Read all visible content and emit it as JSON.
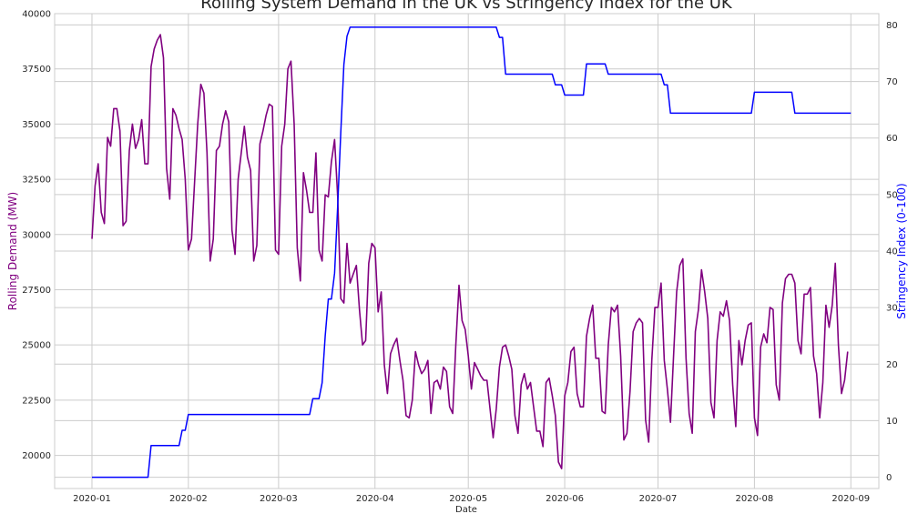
{
  "chart_data": {
    "type": "line",
    "title": "Rolling System Demand in the UK vs Stringency Index for the UK",
    "xlabel": "Date",
    "ylabel_left": "Rolling Demand (MW)",
    "ylabel_right": "Stringency Index (0-100)",
    "x_range": [
      "2019-12-20",
      "2020-09-10"
    ],
    "x_ticks": [
      "2020-01",
      "2020-02",
      "2020-03",
      "2020-04",
      "2020-05",
      "2020-06",
      "2020-07",
      "2020-08",
      "2020-09"
    ],
    "x_tick_dates": [
      "2020-01-01",
      "2020-02-01",
      "2020-03-01",
      "2020-04-01",
      "2020-05-01",
      "2020-06-01",
      "2020-07-01",
      "2020-08-01",
      "2020-09-01"
    ],
    "ylim_left": [
      18500,
      40000
    ],
    "ylim_right": [
      -2,
      82
    ],
    "yticks_left": [
      20000,
      22500,
      25000,
      27500,
      30000,
      32500,
      35000,
      37500,
      40000
    ],
    "yticks_right": [
      0,
      10,
      20,
      30,
      40,
      50,
      60,
      70,
      80
    ],
    "grid": true,
    "colors": {
      "demand": "#800080",
      "stringency": "#0000ff"
    },
    "series": [
      {
        "axis": "left",
        "color": "#800080",
        "start_date": "2020-01-01",
        "interval_days": 1,
        "values": [
          29800,
          32200,
          33200,
          31000,
          30500,
          34400,
          34000,
          35700,
          35700,
          34700,
          30400,
          30600,
          33800,
          35000,
          33900,
          34300,
          35200,
          33200,
          33200,
          37600,
          38400,
          38800,
          39050,
          38000,
          33000,
          31600,
          35700,
          35400,
          34800,
          34300,
          32500,
          29300,
          29800,
          32400,
          35000,
          36800,
          36400,
          33700,
          28800,
          29800,
          33800,
          34000,
          35000,
          35600,
          35100,
          30200,
          29100,
          32500,
          33700,
          34900,
          33500,
          32900,
          28800,
          29500,
          34100,
          34700,
          35400,
          35900,
          35800,
          29300,
          29100,
          34000,
          35000,
          37500,
          37850,
          35000,
          29400,
          27900,
          32800,
          32000,
          31000,
          31000,
          33700,
          29300,
          28800,
          31800,
          31700,
          33300,
          34300,
          31700,
          27100,
          26900,
          29600,
          27800,
          28200,
          28600,
          26600,
          25000,
          25200,
          28700,
          29600,
          29400,
          26500,
          27400,
          24100,
          22800,
          24600,
          25000,
          25300,
          24300,
          23400,
          21800,
          21700,
          22500,
          24700,
          24100,
          23700,
          23900,
          24300,
          21900,
          23300,
          23400,
          23000,
          24000,
          23800,
          22200,
          21900,
          25000,
          27700,
          26100,
          25700,
          24500,
          23000,
          24200,
          23900,
          23600,
          23400,
          23400,
          22100,
          20800,
          22100,
          24000,
          24900,
          25000,
          24500,
          23900,
          21800,
          21000,
          23200,
          23700,
          23000,
          23300,
          22200,
          21100,
          21100,
          20400,
          23300,
          23500,
          22700,
          21800,
          19700,
          19400,
          22700,
          23300,
          24700,
          24900,
          22800,
          22200,
          22200,
          25400,
          26200,
          26800,
          24400,
          24400,
          22000,
          21900,
          25000,
          26700,
          26500,
          26800,
          24500,
          20700,
          21000,
          22900,
          25600,
          26000,
          26200,
          26000,
          21600,
          20600,
          24300,
          26700,
          26700,
          27800,
          24300,
          23000,
          21500,
          24500,
          27400,
          28600,
          28900,
          24400,
          21900,
          21000,
          25600,
          26600,
          28400,
          27400,
          26200,
          22400,
          21700,
          25200,
          26500,
          26300,
          27000,
          26100,
          23200,
          21300,
          25200,
          24100,
          25200,
          25900,
          26000,
          21700,
          20900,
          24900,
          25500,
          25100,
          26700,
          26600,
          23200,
          22500,
          26900,
          28000,
          28200,
          28200,
          27800,
          25200,
          24600,
          27300,
          27300,
          27600,
          24500,
          23700,
          21700,
          23300,
          26800,
          25800,
          26800,
          28700,
          25000,
          22800,
          23400,
          24700
        ]
      },
      {
        "axis": "right",
        "color": "#0000ff",
        "points": [
          [
            "2020-01-01",
            0
          ],
          [
            "2020-01-19",
            0
          ],
          [
            "2020-01-20",
            5.6
          ],
          [
            "2020-01-29",
            5.6
          ],
          [
            "2020-01-30",
            8.3
          ],
          [
            "2020-01-31",
            8.3
          ],
          [
            "2020-02-01",
            11.1
          ],
          [
            "2020-03-11",
            11.1
          ],
          [
            "2020-03-12",
            13.9
          ],
          [
            "2020-03-14",
            13.9
          ],
          [
            "2020-03-15",
            16.7
          ],
          [
            "2020-03-16",
            25
          ],
          [
            "2020-03-17",
            31.5
          ],
          [
            "2020-03-18",
            31.5
          ],
          [
            "2020-03-19",
            36.1
          ],
          [
            "2020-03-20",
            48
          ],
          [
            "2020-03-21",
            61
          ],
          [
            "2020-03-22",
            73
          ],
          [
            "2020-03-23",
            78
          ],
          [
            "2020-03-24",
            79.6
          ],
          [
            "2020-05-10",
            79.6
          ],
          [
            "2020-05-11",
            77.8
          ],
          [
            "2020-05-12",
            77.8
          ],
          [
            "2020-05-13",
            71.3
          ],
          [
            "2020-05-28",
            71.3
          ],
          [
            "2020-05-29",
            69.4
          ],
          [
            "2020-05-31",
            69.4
          ],
          [
            "2020-06-01",
            67.6
          ],
          [
            "2020-06-07",
            67.6
          ],
          [
            "2020-06-08",
            73.1
          ],
          [
            "2020-06-14",
            73.1
          ],
          [
            "2020-06-15",
            71.3
          ],
          [
            "2020-07-02",
            71.3
          ],
          [
            "2020-07-03",
            69.4
          ],
          [
            "2020-07-04",
            69.4
          ],
          [
            "2020-07-05",
            64.4
          ],
          [
            "2020-07-31",
            64.4
          ],
          [
            "2020-08-01",
            68.1
          ],
          [
            "2020-08-13",
            68.1
          ],
          [
            "2020-08-14",
            64.4
          ],
          [
            "2020-09-01",
            64.4
          ]
        ]
      }
    ]
  }
}
